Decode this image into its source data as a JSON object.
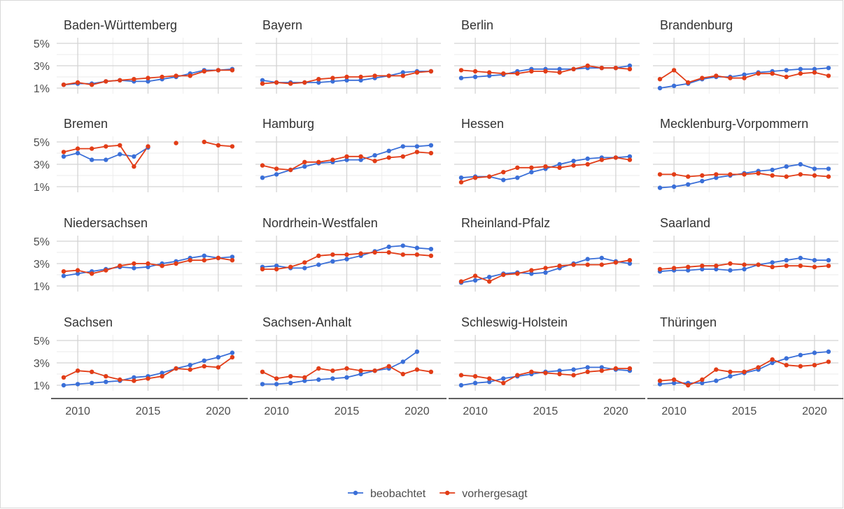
{
  "chart_data": {
    "type": "line",
    "facet_by": "state",
    "layout": {
      "rows": 4,
      "cols": 4
    },
    "x_ticks": [
      2010,
      2015,
      2020
    ],
    "xlim": [
      2008.5,
      2021.7
    ],
    "y_ticks": [
      1,
      3,
      5
    ],
    "y_tick_labels": [
      "1%",
      "3%",
      "5%"
    ],
    "ylim": [
      0.5,
      5.5
    ],
    "legend": {
      "position": "bottom"
    },
    "series_styles": [
      {
        "name": "beobachtet",
        "color": "#3a6fd8"
      },
      {
        "name": "vorhergesagt",
        "color": "#e23d17"
      }
    ],
    "x": [
      2009,
      2010,
      2011,
      2012,
      2013,
      2014,
      2015,
      2016,
      2017,
      2018,
      2019,
      2020,
      2021
    ],
    "panels": [
      {
        "title": "Baden-Württemberg",
        "series": [
          {
            "name": "beobachtet",
            "values": [
              1.3,
              1.4,
              1.4,
              1.6,
              1.7,
              1.6,
              1.6,
              1.8,
              2.0,
              2.3,
              2.6,
              2.6,
              2.7
            ]
          },
          {
            "name": "vorhergesagt",
            "values": [
              1.3,
              1.5,
              1.3,
              1.6,
              1.7,
              1.8,
              1.9,
              2.0,
              2.1,
              2.1,
              2.5,
              2.6,
              2.6
            ]
          }
        ]
      },
      {
        "title": "Bayern",
        "series": [
          {
            "name": "beobachtet",
            "values": [
              1.7,
              1.5,
              1.5,
              1.5,
              1.5,
              1.6,
              1.7,
              1.7,
              1.9,
              2.1,
              2.4,
              2.5,
              2.5
            ]
          },
          {
            "name": "vorhergesagt",
            "values": [
              1.4,
              1.5,
              1.4,
              1.5,
              1.8,
              1.9,
              2.0,
              2.0,
              2.1,
              2.1,
              2.1,
              2.4,
              2.5
            ]
          }
        ]
      },
      {
        "title": "Berlin",
        "series": [
          {
            "name": "beobachtet",
            "values": [
              1.9,
              2.0,
              2.1,
              2.2,
              2.5,
              2.7,
              2.7,
              2.7,
              2.7,
              2.8,
              2.8,
              2.8,
              3.0
            ]
          },
          {
            "name": "vorhergesagt",
            "values": [
              2.6,
              2.5,
              2.4,
              2.3,
              2.3,
              2.5,
              2.5,
              2.4,
              2.7,
              3.0,
              2.8,
              2.8,
              2.7
            ]
          }
        ]
      },
      {
        "title": "Brandenburg",
        "series": [
          {
            "name": "beobachtet",
            "values": [
              1.0,
              1.2,
              1.4,
              1.8,
              2.0,
              2.0,
              2.2,
              2.4,
              2.5,
              2.6,
              2.7,
              2.7,
              2.8
            ]
          },
          {
            "name": "vorhergesagt",
            "values": [
              1.8,
              2.6,
              1.5,
              1.9,
              2.1,
              1.9,
              1.9,
              2.3,
              2.3,
              2.0,
              2.3,
              2.4,
              2.1
            ]
          }
        ]
      },
      {
        "title": "Bremen",
        "series": [
          {
            "name": "beobachtet",
            "values": [
              3.7,
              4.0,
              3.4,
              3.4,
              3.9,
              3.7,
              4.5,
              null,
              null,
              null,
              null,
              null,
              null
            ]
          },
          {
            "name": "vorhergesagt",
            "values": [
              4.1,
              4.4,
              4.4,
              4.6,
              4.7,
              2.8,
              4.6,
              null,
              4.9,
              null,
              5.0,
              4.7,
              4.6
            ]
          }
        ]
      },
      {
        "title": "Hamburg",
        "series": [
          {
            "name": "beobachtet",
            "values": [
              1.8,
              2.1,
              2.5,
              2.8,
              3.1,
              3.2,
              3.4,
              3.4,
              3.8,
              4.2,
              4.6,
              4.6,
              4.7
            ]
          },
          {
            "name": "vorhergesagt",
            "values": [
              2.9,
              2.6,
              2.5,
              3.2,
              3.2,
              3.4,
              3.7,
              3.7,
              3.3,
              3.6,
              3.7,
              4.1,
              4.0
            ]
          }
        ]
      },
      {
        "title": "Hessen",
        "series": [
          {
            "name": "beobachtet",
            "values": [
              1.8,
              1.9,
              1.9,
              1.6,
              1.8,
              2.3,
              2.6,
              3.0,
              3.3,
              3.5,
              3.6,
              3.6,
              3.7
            ]
          },
          {
            "name": "vorhergesagt",
            "values": [
              1.4,
              1.8,
              1.9,
              2.3,
              2.7,
              2.7,
              2.8,
              2.7,
              2.9,
              3.0,
              3.4,
              3.6,
              3.4
            ]
          }
        ]
      },
      {
        "title": "Mecklenburg-Vorpommern",
        "series": [
          {
            "name": "beobachtet",
            "values": [
              0.9,
              1.0,
              1.2,
              1.5,
              1.8,
              2.0,
              2.2,
              2.4,
              2.5,
              2.8,
              3.0,
              2.6,
              2.6
            ]
          },
          {
            "name": "vorhergesagt",
            "values": [
              2.1,
              2.1,
              1.9,
              2.0,
              2.1,
              2.1,
              2.1,
              2.2,
              2.0,
              1.9,
              2.1,
              2.0,
              1.9
            ]
          }
        ]
      },
      {
        "title": "Niedersachsen",
        "series": [
          {
            "name": "beobachtet",
            "values": [
              1.9,
              2.1,
              2.3,
              2.5,
              2.7,
              2.6,
              2.7,
              3.0,
              3.2,
              3.5,
              3.7,
              3.5,
              3.6
            ]
          },
          {
            "name": "vorhergesagt",
            "values": [
              2.3,
              2.4,
              2.1,
              2.4,
              2.8,
              3.0,
              3.0,
              2.8,
              3.0,
              3.3,
              3.3,
              3.5,
              3.3
            ]
          }
        ]
      },
      {
        "title": "Nordrhein-Westfalen",
        "series": [
          {
            "name": "beobachtet",
            "values": [
              2.7,
              2.8,
              2.6,
              2.6,
              2.9,
              3.2,
              3.4,
              3.7,
              4.1,
              4.5,
              4.6,
              4.4,
              4.3
            ]
          },
          {
            "name": "vorhergesagt",
            "values": [
              2.5,
              2.5,
              2.7,
              3.1,
              3.7,
              3.8,
              3.8,
              3.9,
              4.0,
              4.0,
              3.8,
              3.8,
              3.7
            ]
          }
        ]
      },
      {
        "title": "Rheinland-Pfalz",
        "series": [
          {
            "name": "beobachtet",
            "values": [
              1.3,
              1.5,
              1.8,
              2.1,
              2.2,
              2.1,
              2.2,
              2.6,
              3.0,
              3.4,
              3.5,
              3.2,
              3.0
            ]
          },
          {
            "name": "vorhergesagt",
            "values": [
              1.4,
              1.9,
              1.4,
              2.0,
              2.1,
              2.4,
              2.6,
              2.8,
              2.9,
              2.9,
              2.9,
              3.1,
              3.3
            ]
          }
        ]
      },
      {
        "title": "Saarland",
        "series": [
          {
            "name": "beobachtet",
            "values": [
              2.3,
              2.4,
              2.4,
              2.5,
              2.5,
              2.4,
              2.5,
              2.9,
              3.1,
              3.3,
              3.5,
              3.3,
              3.3
            ]
          },
          {
            "name": "vorhergesagt",
            "values": [
              2.5,
              2.6,
              2.7,
              2.8,
              2.8,
              3.0,
              2.9,
              2.9,
              2.7,
              2.8,
              2.8,
              2.7,
              2.8
            ]
          }
        ]
      },
      {
        "title": "Sachsen",
        "series": [
          {
            "name": "beobachtet",
            "values": [
              1.0,
              1.1,
              1.2,
              1.3,
              1.4,
              1.7,
              1.8,
              2.1,
              2.5,
              2.8,
              3.2,
              3.5,
              3.9
            ]
          },
          {
            "name": "vorhergesagt",
            "values": [
              1.7,
              2.3,
              2.2,
              1.8,
              1.5,
              1.4,
              1.6,
              1.8,
              2.5,
              2.4,
              2.7,
              2.6,
              3.5
            ]
          }
        ]
      },
      {
        "title": "Sachsen-Anhalt",
        "series": [
          {
            "name": "beobachtet",
            "values": [
              1.1,
              1.1,
              1.2,
              1.4,
              1.5,
              1.6,
              1.7,
              2.0,
              2.3,
              2.5,
              3.1,
              4.0,
              null
            ]
          },
          {
            "name": "vorhergesagt",
            "values": [
              2.2,
              1.6,
              1.8,
              1.7,
              2.5,
              2.3,
              2.5,
              2.3,
              2.3,
              2.7,
              2.0,
              2.4,
              2.2
            ]
          }
        ]
      },
      {
        "title": "Schleswig-Holstein",
        "series": [
          {
            "name": "beobachtet",
            "values": [
              1.0,
              1.2,
              1.3,
              1.6,
              1.8,
              2.0,
              2.2,
              2.3,
              2.4,
              2.6,
              2.6,
              2.4,
              2.3
            ]
          },
          {
            "name": "vorhergesagt",
            "values": [
              1.9,
              1.8,
              1.6,
              1.2,
              1.9,
              2.2,
              2.1,
              2.0,
              1.9,
              2.2,
              2.3,
              2.5,
              2.5
            ]
          }
        ]
      },
      {
        "title": "Thüringen",
        "series": [
          {
            "name": "beobachtet",
            "values": [
              1.1,
              1.2,
              1.2,
              1.2,
              1.4,
              1.8,
              2.1,
              2.4,
              3.0,
              3.4,
              3.7,
              3.9,
              4.0
            ]
          },
          {
            "name": "vorhergesagt",
            "values": [
              1.4,
              1.5,
              1.0,
              1.5,
              2.4,
              2.2,
              2.2,
              2.6,
              3.3,
              2.8,
              2.7,
              2.8,
              3.1
            ]
          }
        ]
      }
    ]
  }
}
